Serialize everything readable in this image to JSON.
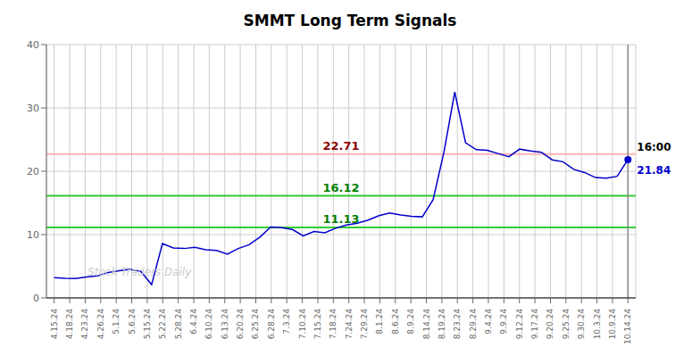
{
  "chart_data": {
    "type": "line",
    "title": "SMMT Long Term Signals",
    "x": [
      0,
      0.6981,
      1.3962,
      2.0943,
      2.7925,
      3.4906,
      4.1887,
      4.8868,
      5.5849,
      6.283,
      6.9811,
      7.6792,
      8.3774,
      9.0755,
      9.7736,
      10.4717,
      11.1698,
      11.8679,
      12.566,
      13.2642,
      13.9623,
      14.6604,
      15.3585,
      16.0566,
      16.7547,
      17.4528,
      18.1509,
      18.8491,
      19.5472,
      20.2453,
      20.9434,
      21.6415,
      22.3396,
      23.0377,
      23.7358,
      24.434,
      25.1321,
      25.8302,
      26.5283,
      27.2264,
      27.9245,
      28.6226,
      29.3208,
      30.0189,
      30.717,
      31.4151,
      32.1132,
      32.8113,
      33.5094,
      34.2075,
      34.9057,
      35.6038,
      36.3019,
      37
    ],
    "values": [
      3.2,
      3.1,
      3.05,
      3.3,
      3.5,
      4.0,
      4.3,
      4.5,
      4.2,
      2.1,
      8.6,
      7.9,
      7.8,
      8.0,
      7.6,
      7.5,
      6.9,
      7.8,
      8.4,
      9.6,
      11.2,
      11.1,
      10.8,
      9.8,
      10.5,
      10.3,
      11.0,
      11.5,
      11.8,
      12.3,
      13.0,
      13.4,
      13.1,
      12.9,
      12.8,
      15.5,
      23.0,
      32.5,
      24.5,
      23.4,
      23.3,
      22.8,
      22.3,
      23.5,
      23.2,
      23.0,
      21.8,
      21.5,
      20.3,
      19.8,
      19.0,
      18.9,
      19.2,
      21.84
    ],
    "color": "#0000cc",
    "xlim": [
      -0.5,
      37.5
    ],
    "xticks": [
      {
        "value": 0,
        "label": "4.15.24"
      },
      {
        "value": 1,
        "label": "4.18.24"
      },
      {
        "value": 2,
        "label": "4.23.24"
      },
      {
        "value": 3,
        "label": "4.26.24"
      },
      {
        "value": 4,
        "label": "5.1.24"
      },
      {
        "value": 5,
        "label": "5.6.24"
      },
      {
        "value": 6,
        "label": "5.15.24"
      },
      {
        "value": 7,
        "label": "5.22.24"
      },
      {
        "value": 8,
        "label": "5.28.24"
      },
      {
        "value": 9,
        "label": "6.4.24"
      },
      {
        "value": 10,
        "label": "6.10.24"
      },
      {
        "value": 11,
        "label": "6.13.24"
      },
      {
        "value": 12,
        "label": "6.20.24"
      },
      {
        "value": 13,
        "label": "6.25.24"
      },
      {
        "value": 14,
        "label": "6.28.24"
      },
      {
        "value": 15,
        "label": "7.3.24"
      },
      {
        "value": 16,
        "label": "7.10.24"
      },
      {
        "value": 17,
        "label": "7.15.24"
      },
      {
        "value": 18,
        "label": "7.18.24"
      },
      {
        "value": 19,
        "label": "7.24.24"
      },
      {
        "value": 20,
        "label": "7.29.24"
      },
      {
        "value": 21,
        "label": "8.1.24"
      },
      {
        "value": 22,
        "label": "8.6.24"
      },
      {
        "value": 23,
        "label": "8.9.24"
      },
      {
        "value": 24,
        "label": "8.14.24"
      },
      {
        "value": 25,
        "label": "8.19.24"
      },
      {
        "value": 26,
        "label": "8.23.24"
      },
      {
        "value": 27,
        "label": "8.29.24"
      },
      {
        "value": 28,
        "label": "9.4.24"
      },
      {
        "value": 29,
        "label": "9.9.24"
      },
      {
        "value": 30,
        "label": "9.12.24"
      },
      {
        "value": 31,
        "label": "9.17.24"
      },
      {
        "value": 32,
        "label": "9.20.24"
      },
      {
        "value": 33,
        "label": "9.25.24"
      },
      {
        "value": 34,
        "label": "9.30.24"
      },
      {
        "value": 35,
        "label": "10.3.24"
      },
      {
        "value": 36,
        "label": "10.9.24"
      },
      {
        "value": 37,
        "label": "10.14.24"
      }
    ],
    "ylim": [
      0,
      40
    ],
    "yticks": [
      0,
      10,
      20,
      30,
      40
    ],
    "grid": true,
    "reference_lines": [
      {
        "value": 22.71,
        "label": "22.71",
        "color": "#ffb3b3",
        "label_color": "darkred"
      },
      {
        "value": 16.12,
        "label": "16.12",
        "color": "#33cc33",
        "label_color": "green"
      },
      {
        "value": 11.13,
        "label": "11.13",
        "color": "#33cc33",
        "label_color": "green"
      }
    ],
    "vertical_line": {
      "x": 37,
      "color": "#888888"
    },
    "last_point": {
      "x": 37,
      "y": 21.84,
      "label": "21.84",
      "time_label": "16:00",
      "marker": "circle"
    },
    "watermark": "Stock Traders Daily"
  }
}
